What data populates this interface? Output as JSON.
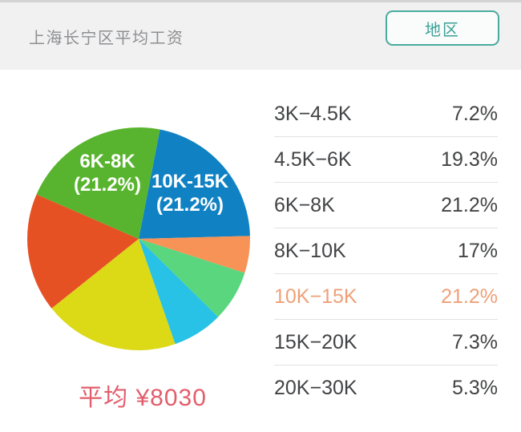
{
  "header": {
    "title": "上海长宁区平均工资",
    "region_button_label": "地区"
  },
  "chart_data": {
    "type": "pie",
    "title": "上海长宁区平均工资",
    "average_label": "平均 ¥8030",
    "start_angle_deg": 11,
    "legend_position": "right",
    "slices": [
      {
        "name": "10K-15K",
        "percent": 21.2,
        "color": "#1082c3"
      },
      {
        "name": "20K-30K",
        "percent": 5.3,
        "color": "#f79356"
      },
      {
        "name": "15K-20K",
        "percent": 7.3,
        "color": "#59d67e"
      },
      {
        "name": "3K-4.5K",
        "percent": 7.2,
        "color": "#27c2e6"
      },
      {
        "name": "4.5K-6K",
        "percent": 19.3,
        "color": "#dcd917"
      },
      {
        "name": "8K-10K",
        "percent": 17,
        "color": "#e65124"
      },
      {
        "name": "6K-8K",
        "percent": 21.2,
        "color": "#58b42e"
      }
    ],
    "pie_labels": [
      {
        "lines": [
          "6K-8K",
          "(21.2%)"
        ]
      },
      {
        "lines": [
          "10K-15K",
          "(21.2%)"
        ]
      }
    ]
  },
  "table": {
    "rows": [
      {
        "range": "3K−4.5K",
        "percent": "7.2%",
        "highlighted": false
      },
      {
        "range": "4.5K−6K",
        "percent": "19.3%",
        "highlighted": false
      },
      {
        "range": "6K−8K",
        "percent": "21.2%",
        "highlighted": false
      },
      {
        "range": "8K−10K",
        "percent": "17%",
        "highlighted": false
      },
      {
        "range": "10K−15K",
        "percent": "21.2%",
        "highlighted": true
      },
      {
        "range": "15K−20K",
        "percent": "7.3%",
        "highlighted": false
      },
      {
        "range": "20K−30K",
        "percent": "5.3%",
        "highlighted": false
      }
    ]
  },
  "colors": {
    "highlight_row": "#efa077",
    "accent_teal": "#49aa9e",
    "average_text": "#e25e6c",
    "header_bg": "#f1f1f2",
    "pie_label_text": "#ffffff"
  }
}
